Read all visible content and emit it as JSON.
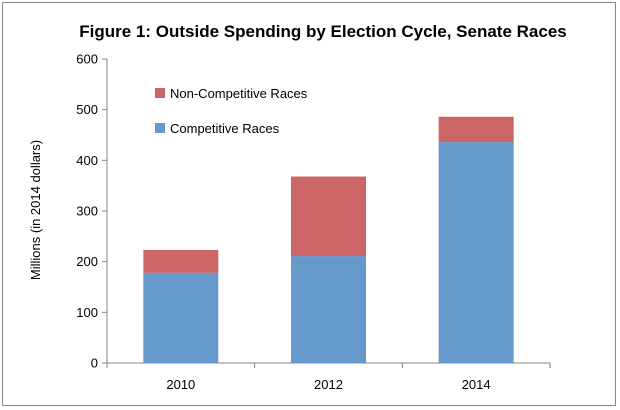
{
  "chart_data": {
    "type": "bar",
    "stacked": true,
    "title": "Figure 1: Outside Spending by Election Cycle, Senate Races",
    "xlabel": "",
    "ylabel": "Millions  (in 2014 dollars)",
    "categories": [
      "2010",
      "2012",
      "2014"
    ],
    "ylim": [
      0,
      600
    ],
    "yticks": [
      0,
      100,
      200,
      300,
      400,
      500,
      600
    ],
    "grid": false,
    "legend_position": "top-left",
    "series": [
      {
        "name": "Competitive Races",
        "color": "#6699cc",
        "values": [
          178,
          211,
          436
        ]
      },
      {
        "name": "Non-Competitive Races",
        "color": "#cc6666",
        "values": [
          45,
          157,
          50
        ]
      }
    ]
  }
}
